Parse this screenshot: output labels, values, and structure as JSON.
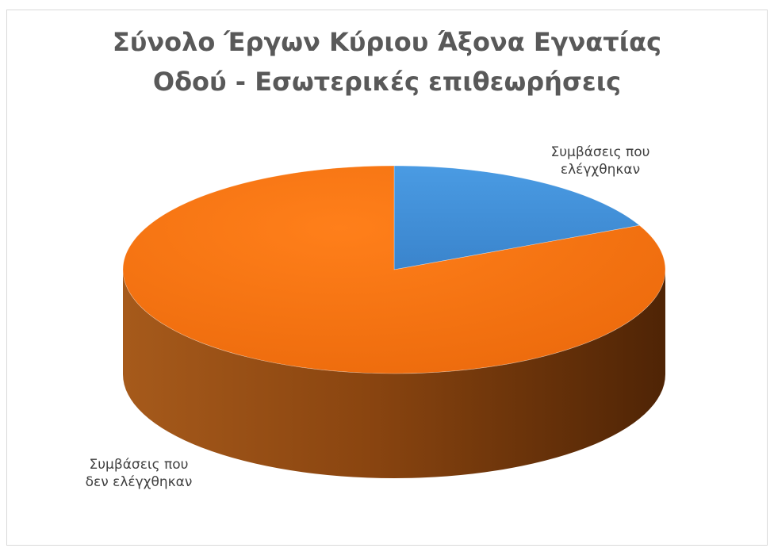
{
  "chart_data": {
    "type": "pie",
    "title_lines": [
      "Σύνολο Έργων Κύριου Άξονα Εγνατίας",
      "Οδού - Εσωτερικές επιθεωρήσεις"
    ],
    "slices": [
      {
        "label_lines": [
          "Συμβάσεις που",
          "ελέγχθηκαν"
        ],
        "value": 18,
        "color": "#5b9bd5"
      },
      {
        "label_lines": [
          "Συμβάσεις που",
          "δεν ελέγχθηκαν"
        ],
        "value": 82,
        "color": "#ed7d31"
      }
    ],
    "legend": "none",
    "style": "3d"
  }
}
